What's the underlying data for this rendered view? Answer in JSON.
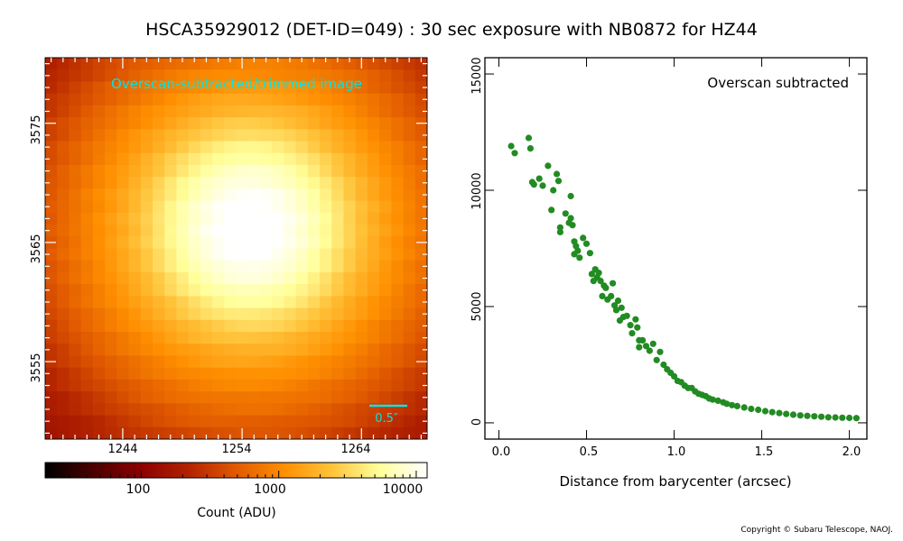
{
  "figure": {
    "title": "HSCA35929012 (DET-ID=049) :  30 sec exposure with NB0872 for HZ44",
    "copyright": "Copyright © Subaru Telescope, NAOJ."
  },
  "colors": {
    "marker": "#228b22",
    "annotation": "#00e5e5",
    "colormap": [
      "#000000",
      "#4a0000",
      "#8b0000",
      "#b22200",
      "#e15a00",
      "#ff8f00",
      "#ffc33a",
      "#ffff9a",
      "#ffffff"
    ]
  },
  "chart_data": [
    {
      "type": "heatmap",
      "annotation": "Overscan-subtracted/trimmed image",
      "scale_bar_label": "0.5″",
      "x_ticks": [
        "1244",
        "1254",
        "1264"
      ],
      "y_ticks": [
        "3575",
        "3565",
        "3555"
      ],
      "xlim": [
        1237.5,
        1269.5
      ],
      "ylim": [
        3548.5,
        3580.5
      ],
      "source_center": [
        1254.6,
        3566.2
      ],
      "colorbar": {
        "label": "Count (ADU)",
        "scale": "log",
        "range": [
          20,
          12000
        ],
        "ticks": [
          "100",
          "1000",
          "10000"
        ]
      }
    },
    {
      "type": "scatter",
      "annotation": "Overscan subtracted",
      "xlabel": "Distance from barycenter (arcsec)",
      "ylabel": "",
      "xlim": [
        -0.08,
        2.1
      ],
      "ylim": [
        -700,
        15700
      ],
      "x_ticks": [
        "0.0",
        "0.5",
        "1.0",
        "1.5",
        "2.0"
      ],
      "y_ticks": [
        "0",
        "5000",
        "10000",
        "15000"
      ],
      "points": [
        [
          0.07,
          11900
        ],
        [
          0.09,
          11600
        ],
        [
          0.17,
          12250
        ],
        [
          0.18,
          11800
        ],
        [
          0.19,
          10350
        ],
        [
          0.2,
          10250
        ],
        [
          0.23,
          10500
        ],
        [
          0.25,
          10200
        ],
        [
          0.28,
          11050
        ],
        [
          0.3,
          9150
        ],
        [
          0.31,
          10000
        ],
        [
          0.33,
          10700
        ],
        [
          0.34,
          10400
        ],
        [
          0.35,
          8400
        ],
        [
          0.35,
          8200
        ],
        [
          0.38,
          9000
        ],
        [
          0.4,
          8600
        ],
        [
          0.41,
          9750
        ],
        [
          0.41,
          8800
        ],
        [
          0.42,
          8500
        ],
        [
          0.43,
          7800
        ],
        [
          0.43,
          7250
        ],
        [
          0.44,
          7600
        ],
        [
          0.45,
          7400
        ],
        [
          0.46,
          7100
        ],
        [
          0.48,
          7950
        ],
        [
          0.5,
          7700
        ],
        [
          0.52,
          7300
        ],
        [
          0.53,
          6400
        ],
        [
          0.54,
          6100
        ],
        [
          0.55,
          6600
        ],
        [
          0.56,
          6250
        ],
        [
          0.57,
          6450
        ],
        [
          0.58,
          6100
        ],
        [
          0.59,
          5450
        ],
        [
          0.6,
          5900
        ],
        [
          0.61,
          5800
        ],
        [
          0.62,
          5300
        ],
        [
          0.64,
          5450
        ],
        [
          0.65,
          6000
        ],
        [
          0.66,
          5050
        ],
        [
          0.67,
          4850
        ],
        [
          0.68,
          5250
        ],
        [
          0.69,
          4400
        ],
        [
          0.7,
          4950
        ],
        [
          0.71,
          4550
        ],
        [
          0.73,
          4600
        ],
        [
          0.75,
          4200
        ],
        [
          0.76,
          3850
        ],
        [
          0.78,
          4450
        ],
        [
          0.79,
          4100
        ],
        [
          0.8,
          3550
        ],
        [
          0.8,
          3250
        ],
        [
          0.82,
          3550
        ],
        [
          0.84,
          3300
        ],
        [
          0.86,
          3100
        ],
        [
          0.88,
          3400
        ],
        [
          0.9,
          2700
        ],
        [
          0.92,
          3050
        ],
        [
          0.94,
          2500
        ],
        [
          0.96,
          2300
        ],
        [
          0.98,
          2150
        ],
        [
          1.0,
          2000
        ],
        [
          1.02,
          1800
        ],
        [
          1.04,
          1750
        ],
        [
          1.06,
          1600
        ],
        [
          1.08,
          1500
        ],
        [
          1.1,
          1500
        ],
        [
          1.12,
          1350
        ],
        [
          1.14,
          1250
        ],
        [
          1.16,
          1200
        ],
        [
          1.18,
          1150
        ],
        [
          1.2,
          1050
        ],
        [
          1.22,
          1000
        ],
        [
          1.25,
          950
        ],
        [
          1.28,
          880
        ],
        [
          1.3,
          820
        ],
        [
          1.33,
          760
        ],
        [
          1.36,
          720
        ],
        [
          1.4,
          660
        ],
        [
          1.44,
          600
        ],
        [
          1.48,
          560
        ],
        [
          1.52,
          500
        ],
        [
          1.56,
          460
        ],
        [
          1.6,
          420
        ],
        [
          1.64,
          380
        ],
        [
          1.68,
          350
        ],
        [
          1.72,
          320
        ],
        [
          1.76,
          300
        ],
        [
          1.8,
          280
        ],
        [
          1.84,
          260
        ],
        [
          1.88,
          240
        ],
        [
          1.92,
          230
        ],
        [
          1.96,
          220
        ],
        [
          2.0,
          210
        ],
        [
          2.04,
          205
        ]
      ]
    }
  ]
}
